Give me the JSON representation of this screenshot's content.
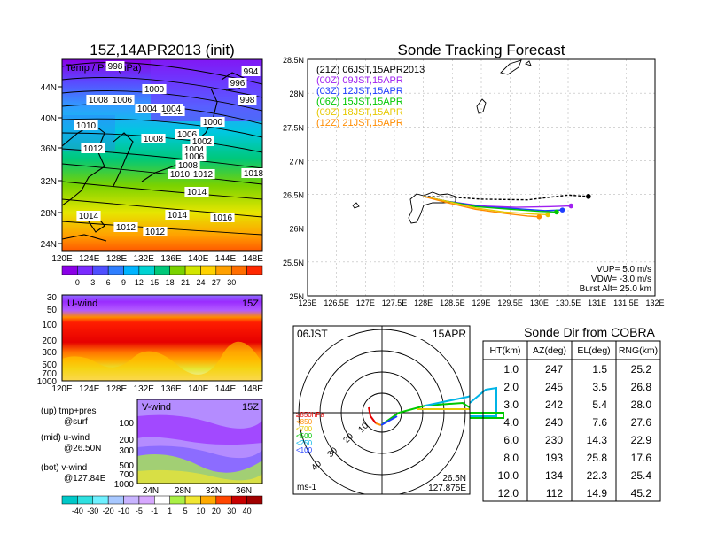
{
  "left": {
    "title": "15Z,14APR2013 (init)",
    "map_label": "Temp / Pres(hPa)",
    "lat_labels": [
      "44N",
      "40N",
      "36N",
      "32N",
      "28N",
      "24N"
    ],
    "lon_labels": [
      "120E",
      "124E",
      "128E",
      "132E",
      "136E",
      "140E",
      "144E",
      "148E"
    ],
    "isobar_labels": [
      {
        "t": "998"
      },
      {
        "t": "994"
      },
      {
        "t": "996"
      },
      {
        "t": "998"
      },
      {
        "t": "1000"
      },
      {
        "t": "1002"
      },
      {
        "t": "1004"
      },
      {
        "t": "1008"
      },
      {
        "t": "1006"
      },
      {
        "t": "1004"
      },
      {
        "t": "1000"
      },
      {
        "t": "1010"
      },
      {
        "t": "1008"
      },
      {
        "t": "1006"
      },
      {
        "t": "1002"
      },
      {
        "t": "1004"
      },
      {
        "t": "1006"
      },
      {
        "t": "1012"
      },
      {
        "t": "1008"
      },
      {
        "t": "1010"
      },
      {
        "t": "1012"
      },
      {
        "t": "1018"
      },
      {
        "t": "1014"
      },
      {
        "t": "1014"
      },
      {
        "t": "1014"
      },
      {
        "t": "1016"
      },
      {
        "t": "1012"
      },
      {
        "t": "1012"
      }
    ],
    "temp_colorbar": {
      "labels": [
        "0",
        "3",
        "6",
        "9",
        "12",
        "15",
        "18",
        "21",
        "24",
        "27",
        "30"
      ],
      "colors": [
        "#8a00e6",
        "#7a2bff",
        "#4f4fff",
        "#2f7fff",
        "#00b4ff",
        "#00d2d2",
        "#00c87a",
        "#7ad200",
        "#d2e600",
        "#ffd200",
        "#ffa000",
        "#ff6e00",
        "#ff2800"
      ]
    },
    "uwind": {
      "label": "U-wind",
      "time": "15Z",
      "y_ticks": [
        "30",
        "50",
        "100",
        "200",
        "300",
        "500",
        "700",
        "1000"
      ],
      "x_ticks": [
        "120E",
        "124E",
        "128E",
        "132E",
        "136E",
        "140E",
        "144E",
        "148E"
      ]
    },
    "vwind": {
      "label": "V-wind",
      "time": "15Z",
      "y_ticks": [
        "100",
        "200",
        "300",
        "500",
        "700",
        "1000"
      ],
      "x_ticks": [
        "24N",
        "28N",
        "32N",
        "36N"
      ]
    },
    "legend_notes": [
      [
        "(up) tmp+pres",
        "@surf"
      ],
      [
        "(mid) u-wind",
        "@26.50N"
      ],
      [
        "(bot) v-wind",
        "@127.84E"
      ]
    ],
    "wind_colorbar": {
      "labels": [
        "-40",
        "-30",
        "-20",
        "-10",
        "-5",
        "-1",
        "1",
        "5",
        "10",
        "20",
        "30",
        "40"
      ],
      "colors": [
        "#00c8c8",
        "#2fe0e0",
        "#6ff0ff",
        "#a8c8ff",
        "#c8b4ff",
        "#d7a8ff",
        "#ffffff",
        "#aaf046",
        "#f0e632",
        "#ffaa00",
        "#ff4600",
        "#c80000",
        "#a00000"
      ]
    }
  },
  "track": {
    "title": "Sonde Tracking Forecast",
    "y_ticks": [
      "28.5N",
      "28N",
      "27.5N",
      "27N",
      "26.5N",
      "26N",
      "25.5N",
      "25N"
    ],
    "x_ticks": [
      "126E",
      "126.5E",
      "127E",
      "127.5E",
      "128E",
      "128.5E",
      "129E",
      "129.5E",
      "130E",
      "130.5E",
      "131E",
      "131.5E",
      "132E"
    ],
    "xlim": [
      126,
      132
    ],
    "ylim": [
      25,
      28.5
    ],
    "legend": [
      {
        "label": "(21Z)  06JST,15APR2013",
        "color": "#000000"
      },
      {
        "label": "(00Z)  09JST,15APR",
        "color": "#a020f0"
      },
      {
        "label": "(03Z)  12JST,15APR",
        "color": "#1e3cff"
      },
      {
        "label": "(06Z)  15JST,15APR",
        "color": "#00c800"
      },
      {
        "label": "(09Z)  18JST,15APR",
        "color": "#e6c800"
      },
      {
        "label": "(12Z)  21JST,15APR",
        "color": "#ff8c00"
      }
    ],
    "params": [
      "VUP=  5.0  m/s",
      "VDW= -3.0  m/s",
      "Burst Alt=  25.0  km"
    ]
  },
  "chart_data": {
    "type": "scatter",
    "title": "Sonde Tracking Forecast",
    "xlim": [
      126,
      132
    ],
    "ylim": [
      25,
      28.5
    ],
    "series": [
      {
        "name": "(21Z)  06JST,15APR2013",
        "color": "#000000",
        "x": [
          128.0,
          128.5,
          129.0,
          129.8,
          130.5,
          130.85
        ],
        "y": [
          26.47,
          26.46,
          26.43,
          26.42,
          26.49,
          26.47
        ]
      },
      {
        "name": "(00Z)  09JST,15APR",
        "color": "#a020f0",
        "x": [
          128.0,
          128.4,
          129.0,
          129.6,
          130.2,
          130.55
        ],
        "y": [
          26.47,
          26.4,
          26.33,
          26.31,
          26.32,
          26.33
        ]
      },
      {
        "name": "(03Z)  12JST,15APR",
        "color": "#1e3cff",
        "x": [
          128.0,
          128.4,
          129.0,
          129.6,
          130.1,
          130.4
        ],
        "y": [
          26.47,
          26.4,
          26.32,
          26.29,
          26.26,
          26.27
        ]
      },
      {
        "name": "(06Z)  15JST,15APR",
        "color": "#00c800",
        "x": [
          128.0,
          128.4,
          128.9,
          129.5,
          130.0,
          130.3
        ],
        "y": [
          26.47,
          26.4,
          26.32,
          26.28,
          26.25,
          26.24
        ]
      },
      {
        "name": "(09Z)  18JST,15APR",
        "color": "#e6c800",
        "x": [
          128.0,
          128.4,
          128.9,
          129.4,
          129.9,
          130.15
        ],
        "y": [
          26.47,
          26.4,
          26.3,
          26.24,
          26.21,
          26.2
        ]
      },
      {
        "name": "(12Z)  21JST,15APR",
        "color": "#ff8c00",
        "x": [
          128.0,
          128.4,
          128.9,
          129.4,
          129.8,
          130.0
        ],
        "y": [
          26.47,
          26.38,
          26.28,
          26.22,
          26.18,
          26.17
        ]
      }
    ]
  },
  "polar": {
    "time": "06JST",
    "date": "15APR",
    "loc_lat": "26.5N",
    "loc_lon": "127.875E",
    "unit": "ms-1",
    "ring_labels": [
      "10",
      "20",
      "30",
      "40"
    ],
    "level_legend": [
      {
        "t": "≥850hPa",
        "c": "#e60000"
      },
      {
        "t": "<850",
        "c": "#ff8c00"
      },
      {
        "t": "<700",
        "c": "#e6c800"
      },
      {
        "t": "<500",
        "c": "#00c800"
      },
      {
        "t": "<250",
        "c": "#00b4e6"
      },
      {
        "t": "<100",
        "c": "#1e3cff"
      }
    ]
  },
  "cobra": {
    "title": "Sonde Dir from COBRA",
    "headers": [
      "HT(km)",
      "AZ(deg)",
      "EL(deg)",
      "RNG(km)"
    ],
    "rows": [
      [
        "1.0",
        "247",
        "1.5",
        "25.2"
      ],
      [
        "2.0",
        "245",
        "3.5",
        "26.8"
      ],
      [
        "3.0",
        "242",
        "5.4",
        "28.0"
      ],
      [
        "4.0",
        "240",
        "7.6",
        "27.6"
      ],
      [
        "6.0",
        "230",
        "14.3",
        "22.9"
      ],
      [
        "8.0",
        "193",
        "25.8",
        "17.6"
      ],
      [
        "10.0",
        "134",
        "22.3",
        "25.4"
      ],
      [
        "12.0",
        "112",
        "14.9",
        "45.2"
      ]
    ]
  }
}
